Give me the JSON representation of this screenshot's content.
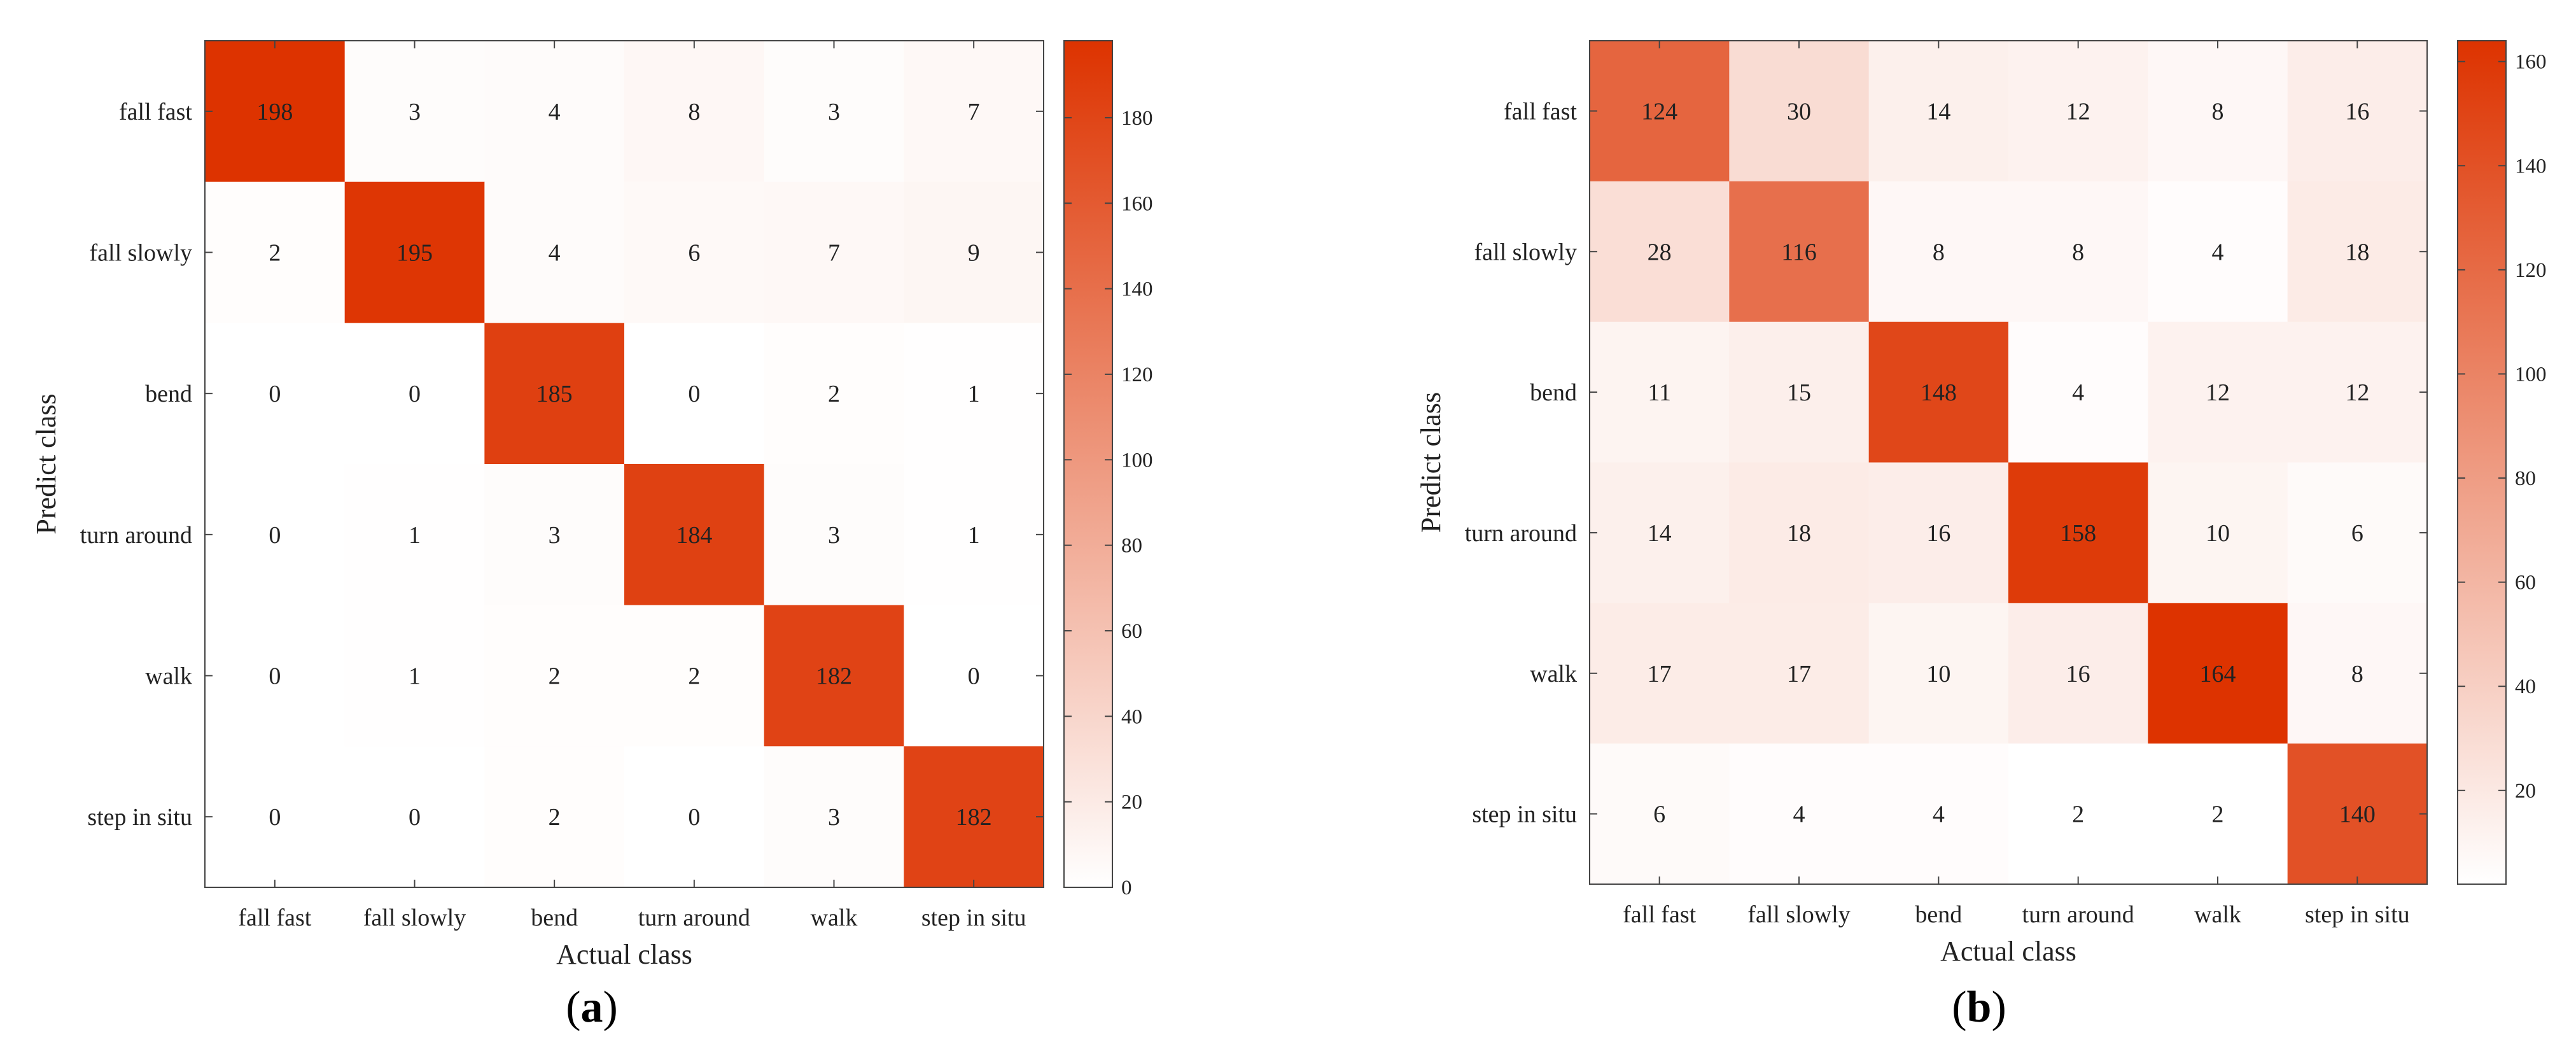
{
  "colors": {
    "low": "#ffffff",
    "high": "#dd3300",
    "axis": "#444444",
    "text": "#222222"
  },
  "chart_data": [
    {
      "type": "heatmap",
      "panel_label": "a",
      "title": "",
      "xlabel": "Actual class",
      "ylabel": "Predict class",
      "x_categories": [
        "fall fast",
        "fall slowly",
        "bend",
        "turn around",
        "walk",
        "step in situ"
      ],
      "y_categories": [
        "fall fast",
        "fall slowly",
        "bend",
        "turn around",
        "walk",
        "step in situ"
      ],
      "values": [
        [
          198,
          3,
          4,
          8,
          3,
          7
        ],
        [
          2,
          195,
          4,
          6,
          7,
          9
        ],
        [
          0,
          0,
          185,
          0,
          2,
          1
        ],
        [
          0,
          1,
          3,
          184,
          3,
          1
        ],
        [
          0,
          1,
          2,
          2,
          182,
          0
        ],
        [
          0,
          0,
          2,
          0,
          3,
          182
        ]
      ],
      "colorbar": {
        "min": 0,
        "max": 198,
        "ticks": [
          0,
          20,
          40,
          60,
          80,
          100,
          120,
          140,
          160,
          180
        ]
      }
    },
    {
      "type": "heatmap",
      "panel_label": "b",
      "title": "",
      "xlabel": "Actual class",
      "ylabel": "Predict class",
      "x_categories": [
        "fall fast",
        "fall slowly",
        "bend",
        "turn around",
        "walk",
        "step in situ"
      ],
      "y_categories": [
        "fall fast",
        "fall slowly",
        "bend",
        "turn around",
        "walk",
        "step in situ"
      ],
      "values": [
        [
          124,
          30,
          14,
          12,
          8,
          16
        ],
        [
          28,
          116,
          8,
          8,
          4,
          18
        ],
        [
          11,
          15,
          148,
          4,
          12,
          12
        ],
        [
          14,
          18,
          16,
          158,
          10,
          6
        ],
        [
          17,
          17,
          10,
          16,
          164,
          8
        ],
        [
          6,
          4,
          4,
          2,
          2,
          140
        ]
      ],
      "colorbar": {
        "min": 2,
        "max": 164,
        "ticks": [
          20,
          40,
          60,
          80,
          100,
          120,
          140,
          160
        ]
      }
    }
  ]
}
